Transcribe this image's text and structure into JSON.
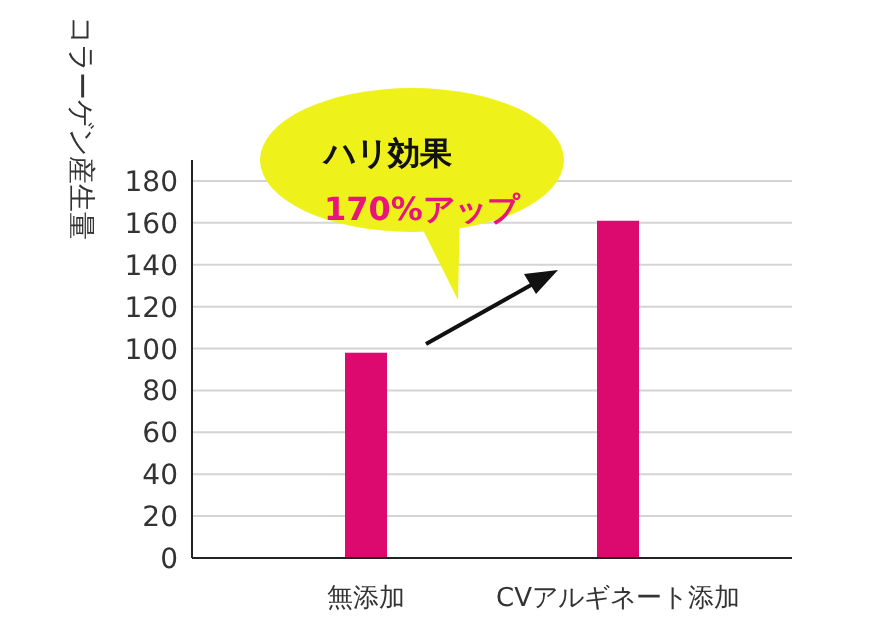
{
  "chart_data": {
    "type": "bar",
    "ylabel": "コラーゲン産生量",
    "categories": [
      "無添加",
      "CVアルギネート添加"
    ],
    "values": [
      98,
      161
    ],
    "color": "#dc0a6e",
    "ylim": [
      0,
      190
    ],
    "yticks": [
      0,
      20,
      40,
      60,
      80,
      100,
      120,
      140,
      160,
      180
    ],
    "grid": "y",
    "annotations": [
      "ハリ効果",
      "170%アップ"
    ]
  }
}
